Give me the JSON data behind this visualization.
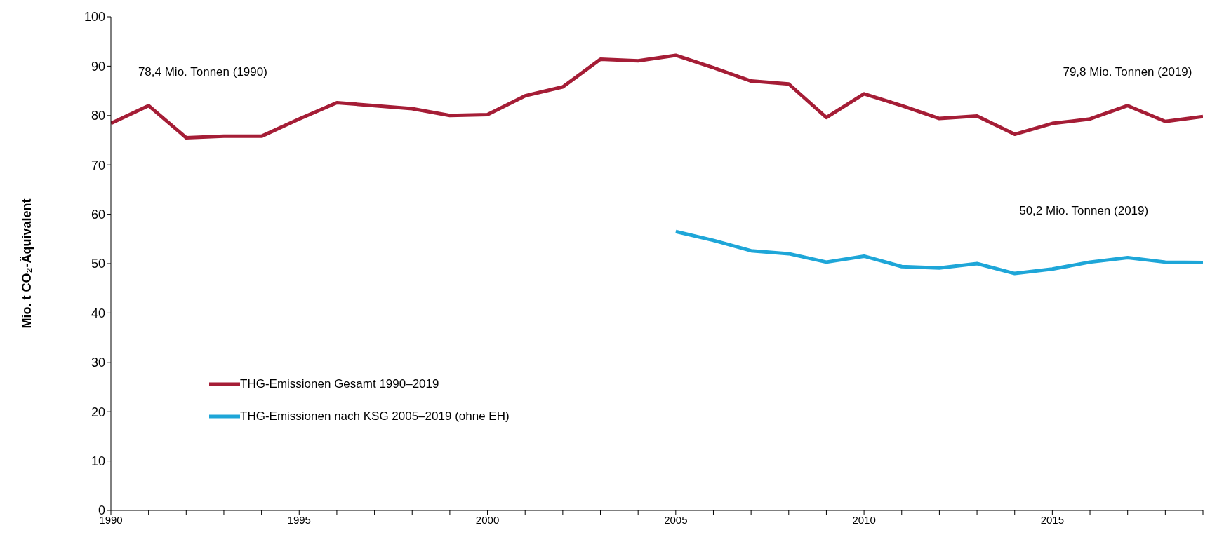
{
  "chart_data": {
    "type": "line",
    "ylabel": "Mio. t CO₂-Äquivalent",
    "x": [
      1990,
      1991,
      1992,
      1993,
      1994,
      1995,
      1996,
      1997,
      1998,
      1999,
      2000,
      2001,
      2002,
      2003,
      2004,
      2005,
      2006,
      2007,
      2008,
      2009,
      2010,
      2011,
      2012,
      2013,
      2014,
      2015,
      2016,
      2017,
      2018,
      2019
    ],
    "series": [
      {
        "name": "THG-Emissionen Gesamt 1990–2019",
        "color": "#a51d36",
        "values": [
          78.4,
          82,
          75.5,
          75.8,
          75.8,
          79.3,
          82.6,
          82,
          81.4,
          80,
          80.2,
          84,
          85.8,
          91.4,
          91.1,
          92.2,
          89.7,
          87,
          86.4,
          79.6,
          84.4,
          82,
          79.4,
          79.9,
          76.2,
          78.4,
          79.3,
          82,
          78.8,
          79.8
        ]
      },
      {
        "name": "THG-Emissionen nach KSG 2005–2019 (ohne EH)",
        "color": "#1ea6d8",
        "values": [
          null,
          null,
          null,
          null,
          null,
          null,
          null,
          null,
          null,
          null,
          null,
          null,
          null,
          null,
          null,
          56.5,
          54.7,
          52.6,
          52,
          50.3,
          51.5,
          49.4,
          49.1,
          50,
          48,
          48.9,
          50.3,
          51.2,
          50.3,
          50.2
        ]
      }
    ],
    "xlim": [
      1990,
      2019
    ],
    "xticks": [
      1990,
      {
        "value": 1991,
        "label": null
      },
      {
        "value": 1992,
        "label": null
      },
      {
        "value": 1993,
        "label": null
      },
      {
        "value": 1994,
        "label": null
      },
      1995,
      {
        "value": 1996,
        "label": null
      },
      {
        "value": 1997,
        "label": null
      },
      {
        "value": 1998,
        "label": null
      },
      {
        "value": 1999,
        "label": null
      },
      2000,
      {
        "value": 2001,
        "label": null
      },
      {
        "value": 2002,
        "label": null
      },
      {
        "value": 2003,
        "label": null
      },
      {
        "value": 2004,
        "label": null
      },
      2005,
      {
        "value": 2006,
        "label": null
      },
      {
        "value": 2007,
        "label": null
      },
      {
        "value": 2008,
        "label": null
      },
      {
        "value": 2009,
        "label": null
      },
      2010,
      {
        "value": 2011,
        "label": null
      },
      {
        "value": 2012,
        "label": null
      },
      {
        "value": 2013,
        "label": null
      },
      {
        "value": 2014,
        "label": null
      },
      2015,
      {
        "value": 2016,
        "label": null
      },
      {
        "value": 2017,
        "label": null
      },
      {
        "value": 2018,
        "label": null
      },
      {
        "value": 2019,
        "label": null
      }
    ],
    "ylim": [
      0,
      100
    ],
    "yticks": [
      0,
      10,
      20,
      30,
      40,
      50,
      60,
      70,
      80,
      90,
      100
    ],
    "annotations": [
      "78,4 Mio. Tonnen (1990)",
      "79,8 Mio. Tonnen (2019)",
      "50,2 Mio. Tonnen (2019)"
    ],
    "grid": false,
    "legend": "bottom left",
    "marker": "none",
    "line_style": "solid"
  }
}
